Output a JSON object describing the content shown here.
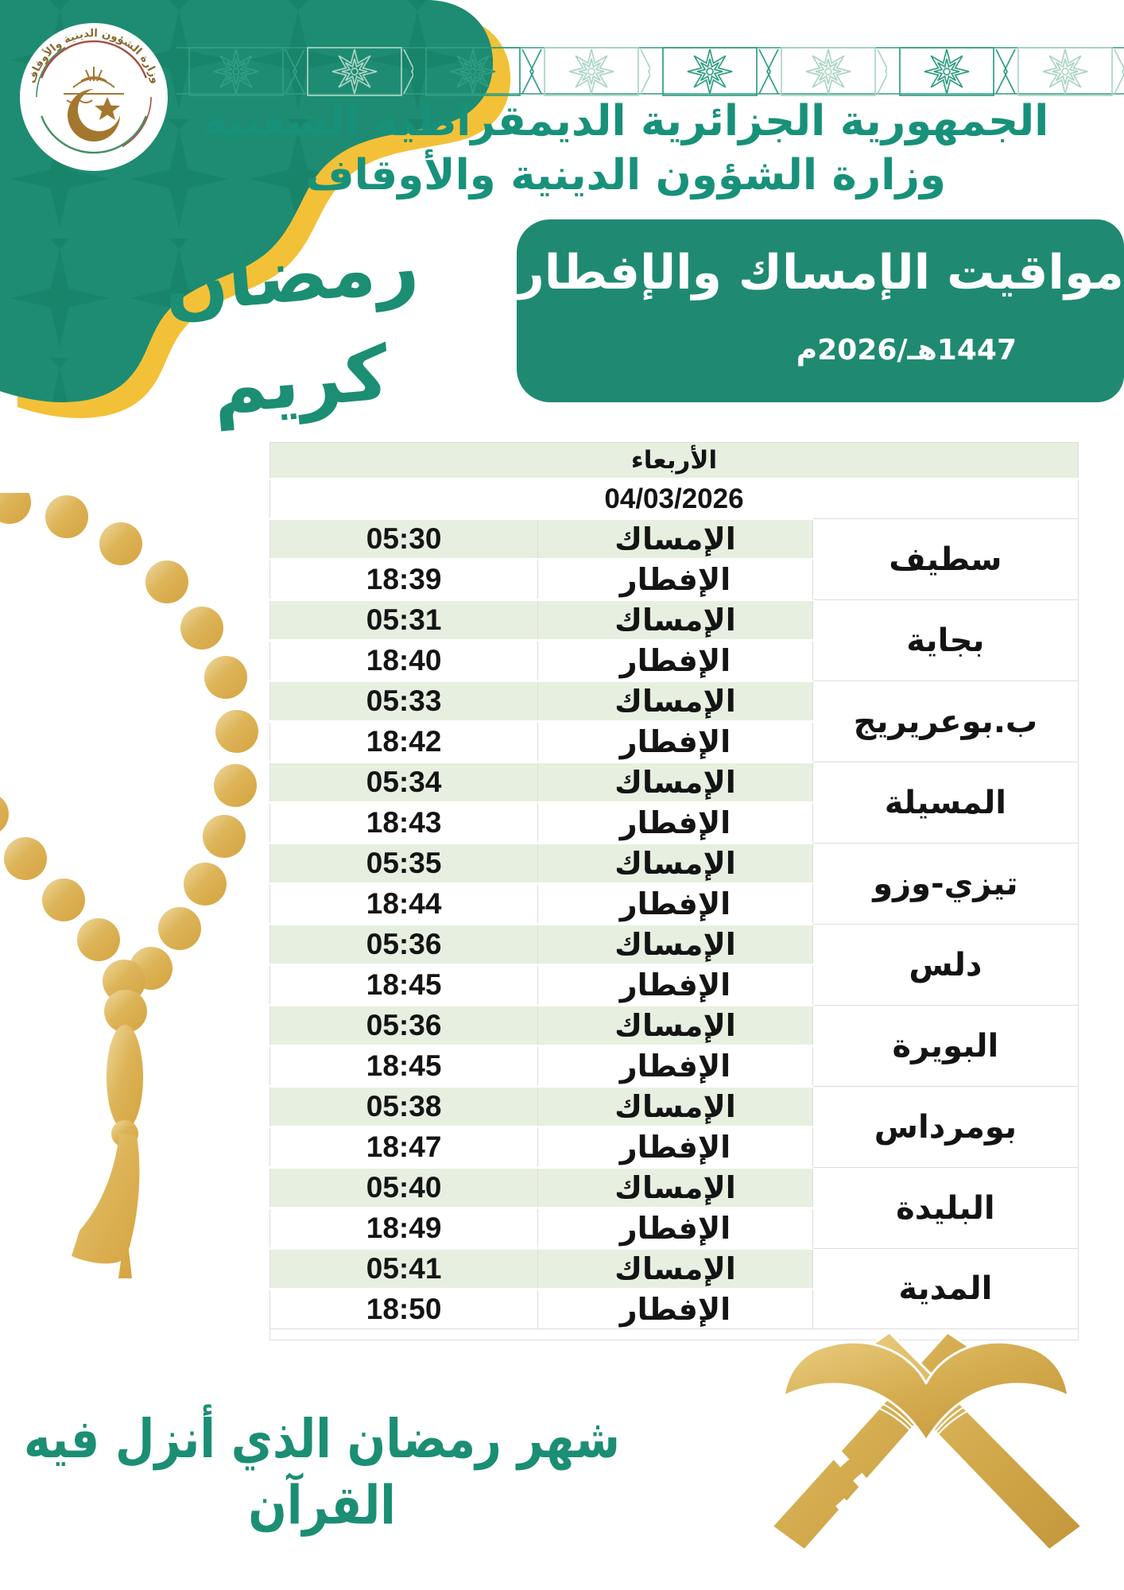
{
  "colors": {
    "teal_green": "#1d8c72",
    "banner_green": "#1f8a71",
    "headline_green": "#18917a",
    "calligraphy_green": "#1b8e74",
    "pattern_dark_green": "#0c6e56",
    "border_star_dark": "#2f9e82",
    "border_star_light": "#abd4c4",
    "gold_band": "#f3c137",
    "beads_gold": "#d8a944",
    "beads_gold_light": "#eed9a0",
    "rehal_gold": "#d4ab4e",
    "table_row_green": "#e7f0e0",
    "table_text": "#141414",
    "banner_text": "#ffffff"
  },
  "header": {
    "republic_line": "الجمهورية الجزائرية الديمقراطية الشعبية",
    "ministry_line": "وزارة الشؤون الدينية والأوقاف",
    "logo_ring_text": "وزارة الشؤون الدينية والأوقاف",
    "ramadan_kareem": "رمضان كريم"
  },
  "banner": {
    "title": "مواقيت الإمساك والإفطار",
    "year": "1447هـ/2026م"
  },
  "table": {
    "day": "الأربعاء",
    "date": "04/03/2026",
    "imsak_label": "الإمساك",
    "iftar_label": "الإفطار",
    "cities": [
      {
        "name": "سطيف",
        "imsak": "05:30",
        "iftar": "18:39"
      },
      {
        "name": "بجاية",
        "imsak": "05:31",
        "iftar": "18:40"
      },
      {
        "name": "ب.بوعريريج",
        "imsak": "05:33",
        "iftar": "18:42"
      },
      {
        "name": "المسيلة",
        "imsak": "05:34",
        "iftar": "18:43"
      },
      {
        "name": "تيزي-وزو",
        "imsak": "05:35",
        "iftar": "18:44"
      },
      {
        "name": "دلس",
        "imsak": "05:36",
        "iftar": "18:45"
      },
      {
        "name": "البويرة",
        "imsak": "05:36",
        "iftar": "18:45"
      },
      {
        "name": "بومرداس",
        "imsak": "05:38",
        "iftar": "18:47"
      },
      {
        "name": "البليدة",
        "imsak": "05:40",
        "iftar": "18:49"
      },
      {
        "name": "المدية",
        "imsak": "05:41",
        "iftar": "18:50"
      }
    ]
  },
  "footer": {
    "verse": "شهر رمضان الذي أنزل فيه القرآن"
  },
  "artwork": {
    "corner": "teal-corner-with-gold-curve",
    "logo": "ministry-seal",
    "top_border": "islamic-star-border",
    "beads": "gold-misbaha-prayer-beads",
    "book": "quran-on-rehal-stand"
  }
}
